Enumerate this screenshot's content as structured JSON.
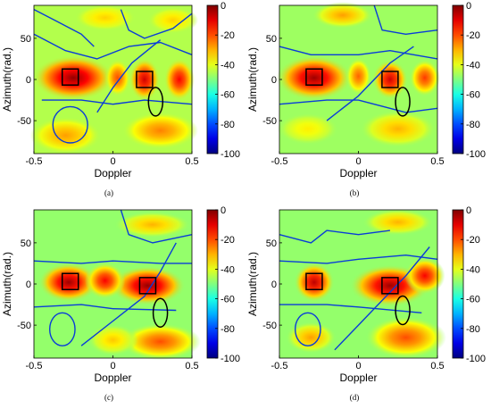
{
  "chart_data": [
    {
      "panel_label": "(a)",
      "type": "heatmap",
      "xlabel": "Doppler",
      "ylabel": "Azimuth(rad.)",
      "xlim": [
        -0.5,
        0.5
      ],
      "ylim": [
        -90,
        90
      ],
      "x_ticks": [
        "-0.5",
        "0",
        "0.5"
      ],
      "y_ticks": [
        "50",
        "0",
        "-50"
      ],
      "colorbar": {
        "min": -100,
        "max": 0,
        "ticks": [
          "0",
          "-20",
          "-40",
          "-60",
          "-80",
          "-100"
        ]
      },
      "background_level": -45,
      "lobes": [
        {
          "x": -0.25,
          "y": 2,
          "level": -2,
          "sx": 0.16,
          "sy": 17
        },
        {
          "x": 0.2,
          "y": 0,
          "level": -8,
          "sx": 0.06,
          "sy": 16
        },
        {
          "x": 0.42,
          "y": 0,
          "level": -12,
          "sx": 0.06,
          "sy": 16
        },
        {
          "x": 0.03,
          "y": 2,
          "level": -20,
          "sx": 0.05,
          "sy": 14
        },
        {
          "x": -0.3,
          "y": -68,
          "level": -28,
          "sx": 0.14,
          "sy": 14
        },
        {
          "x": 0.3,
          "y": -62,
          "level": -25,
          "sx": 0.15,
          "sy": 14
        },
        {
          "x": -0.05,
          "y": 75,
          "level": -33,
          "sx": 0.12,
          "sy": 10
        },
        {
          "x": 0.38,
          "y": 72,
          "level": -33,
          "sx": 0.1,
          "sy": 10
        }
      ],
      "nulls": [
        [
          [
            -0.5,
            55
          ],
          [
            -0.3,
            35
          ],
          [
            -0.1,
            25
          ],
          [
            0.1,
            40
          ],
          [
            0.3,
            45
          ],
          [
            0.5,
            30
          ]
        ],
        [
          [
            -0.45,
            -25
          ],
          [
            -0.2,
            -25
          ],
          [
            0.0,
            -30
          ],
          [
            0.2,
            -25
          ],
          [
            0.5,
            -30
          ]
        ],
        [
          [
            -0.1,
            -40
          ],
          [
            0.0,
            -10
          ],
          [
            0.12,
            20
          ],
          [
            0.3,
            48
          ]
        ],
        [
          [
            -0.5,
            85
          ],
          [
            -0.35,
            70
          ],
          [
            -0.2,
            55
          ],
          [
            -0.12,
            40
          ]
        ],
        [
          [
            0.05,
            85
          ],
          [
            0.1,
            60
          ],
          [
            0.2,
            50
          ],
          [
            0.38,
            62
          ],
          [
            0.5,
            80
          ]
        ]
      ],
      "null_loops": [
        {
          "x": -0.27,
          "y": -55,
          "rx": 0.11,
          "ry": 22
        }
      ],
      "targets": [
        {
          "x": -0.27,
          "y": 3
        },
        {
          "x": 0.2,
          "y": 0
        }
      ],
      "ellipse": {
        "x": 0.27,
        "y": -27
      }
    },
    {
      "panel_label": "(b)",
      "type": "heatmap",
      "xlabel": "Doppler",
      "ylabel": "Azimuth(rad.)",
      "xlim": [
        -0.5,
        0.5
      ],
      "ylim": [
        -90,
        90
      ],
      "x_ticks": [
        "-0.5",
        "0",
        "0.5"
      ],
      "y_ticks": [
        "50",
        "0",
        "-50"
      ],
      "colorbar": {
        "min": -100,
        "max": 0,
        "ticks": [
          "0",
          "-20",
          "-40",
          "-60",
          "-80",
          "-100"
        ]
      },
      "background_level": -47,
      "lobes": [
        {
          "x": -0.28,
          "y": 2,
          "level": -3,
          "sx": 0.15,
          "sy": 17
        },
        {
          "x": 0.2,
          "y": 0,
          "level": -8,
          "sx": 0.07,
          "sy": 15
        },
        {
          "x": 0.42,
          "y": 2,
          "level": -18,
          "sx": 0.06,
          "sy": 14
        },
        {
          "x": 0.0,
          "y": 4,
          "level": -22,
          "sx": 0.05,
          "sy": 14
        },
        {
          "x": -0.1,
          "y": 78,
          "level": -28,
          "sx": 0.12,
          "sy": 10
        },
        {
          "x": 0.25,
          "y": -60,
          "level": -30,
          "sx": 0.15,
          "sy": 14
        },
        {
          "x": -0.32,
          "y": -60,
          "level": -36,
          "sx": 0.12,
          "sy": 12
        }
      ],
      "nulls": [
        [
          [
            -0.5,
            40
          ],
          [
            -0.3,
            30
          ],
          [
            0.0,
            30
          ],
          [
            0.2,
            35
          ],
          [
            0.5,
            25
          ]
        ],
        [
          [
            -0.5,
            -30
          ],
          [
            -0.2,
            -25
          ],
          [
            0.0,
            -25
          ],
          [
            0.3,
            -40
          ],
          [
            0.5,
            -35
          ]
        ],
        [
          [
            -0.2,
            -50
          ],
          [
            0.0,
            -20
          ],
          [
            0.2,
            20
          ],
          [
            0.35,
            40
          ]
        ],
        [
          [
            0.1,
            90
          ],
          [
            0.15,
            60
          ],
          [
            0.3,
            55
          ],
          [
            0.5,
            60
          ]
        ]
      ],
      "null_loops": [],
      "targets": [
        {
          "x": -0.28,
          "y": 3
        },
        {
          "x": 0.2,
          "y": 0
        }
      ],
      "ellipse": {
        "x": 0.28,
        "y": -27
      }
    },
    {
      "panel_label": "(c)",
      "type": "heatmap",
      "xlabel": "Doppler",
      "ylabel": "Azimuth(rad.)",
      "xlim": [
        -0.5,
        0.5
      ],
      "ylim": [
        -90,
        90
      ],
      "x_ticks": [
        "-0.5",
        "0",
        "0.5"
      ],
      "y_ticks": [
        "50",
        "0",
        "-50"
      ],
      "colorbar": {
        "min": -100,
        "max": 0,
        "ticks": [
          "0",
          "-20",
          "-40",
          "-60",
          "-80",
          "-100"
        ]
      },
      "background_level": -48,
      "lobes": [
        {
          "x": -0.28,
          "y": 2,
          "level": -3,
          "sx": 0.12,
          "sy": 15
        },
        {
          "x": 0.22,
          "y": -2,
          "level": -2,
          "sx": 0.15,
          "sy": 15
        },
        {
          "x": -0.05,
          "y": 4,
          "level": -12,
          "sx": 0.08,
          "sy": 14
        },
        {
          "x": 0.3,
          "y": -70,
          "level": -20,
          "sx": 0.16,
          "sy": 14
        },
        {
          "x": 0.0,
          "y": -68,
          "level": -32,
          "sx": 0.1,
          "sy": 12
        },
        {
          "x": 0.25,
          "y": 72,
          "level": -30,
          "sx": 0.15,
          "sy": 10
        }
      ],
      "nulls": [
        [
          [
            -0.5,
            28
          ],
          [
            -0.2,
            25
          ],
          [
            0.0,
            28
          ],
          [
            0.3,
            25
          ],
          [
            0.5,
            25
          ]
        ],
        [
          [
            -0.5,
            -28
          ],
          [
            -0.2,
            -25
          ],
          [
            0.0,
            -30
          ],
          [
            0.4,
            -32
          ]
        ],
        [
          [
            -0.2,
            -75
          ],
          [
            0.0,
            -45
          ],
          [
            0.2,
            -15
          ],
          [
            0.3,
            15
          ],
          [
            0.4,
            50
          ]
        ],
        [
          [
            0.05,
            90
          ],
          [
            0.1,
            60
          ],
          [
            0.25,
            50
          ],
          [
            0.5,
            60
          ]
        ]
      ],
      "null_loops": [
        {
          "x": -0.32,
          "y": -55,
          "rx": 0.08,
          "ry": 20
        }
      ],
      "targets": [
        {
          "x": -0.27,
          "y": 3
        },
        {
          "x": 0.22,
          "y": -2
        }
      ],
      "ellipse": {
        "x": 0.3,
        "y": -35
      }
    },
    {
      "panel_label": "(d)",
      "type": "heatmap",
      "xlabel": "Doppler",
      "ylabel": "Azimuth(rad.)",
      "xlim": [
        -0.5,
        0.5
      ],
      "ylim": [
        -90,
        90
      ],
      "x_ticks": [
        "-0.5",
        "0",
        "0.5"
      ],
      "y_ticks": [
        "50",
        "0",
        "-50"
      ],
      "colorbar": {
        "min": -100,
        "max": 0,
        "ticks": [
          "0",
          "-20",
          "-40",
          "-60",
          "-80",
          "-100"
        ]
      },
      "background_level": -48,
      "lobes": [
        {
          "x": -0.28,
          "y": 2,
          "level": -6,
          "sx": 0.08,
          "sy": 15
        },
        {
          "x": 0.2,
          "y": -2,
          "level": -3,
          "sx": 0.16,
          "sy": 16
        },
        {
          "x": 0.42,
          "y": 10,
          "level": -12,
          "sx": 0.08,
          "sy": 14
        },
        {
          "x": 0.3,
          "y": -65,
          "level": -20,
          "sx": 0.16,
          "sy": 16
        },
        {
          "x": -0.3,
          "y": -65,
          "level": -28,
          "sx": 0.1,
          "sy": 12
        },
        {
          "x": 0.25,
          "y": 75,
          "level": -30,
          "sx": 0.14,
          "sy": 10
        }
      ],
      "nulls": [
        [
          [
            -0.5,
            28
          ],
          [
            -0.2,
            25
          ],
          [
            0.0,
            30
          ],
          [
            0.3,
            35
          ],
          [
            0.5,
            30
          ]
        ],
        [
          [
            -0.5,
            -25
          ],
          [
            -0.2,
            -25
          ],
          [
            0.0,
            -28
          ],
          [
            0.4,
            -35
          ]
        ],
        [
          [
            -0.15,
            -80
          ],
          [
            0.0,
            -50
          ],
          [
            0.15,
            -20
          ],
          [
            0.3,
            10
          ],
          [
            0.45,
            45
          ]
        ],
        [
          [
            -0.5,
            60
          ],
          [
            -0.3,
            50
          ],
          [
            -0.2,
            65
          ],
          [
            0.0,
            60
          ],
          [
            0.2,
            65
          ]
        ]
      ],
      "null_loops": [
        {
          "x": -0.32,
          "y": -55,
          "rx": 0.08,
          "ry": 20
        }
      ],
      "targets": [
        {
          "x": -0.28,
          "y": 3
        },
        {
          "x": 0.2,
          "y": -2
        }
      ],
      "ellipse": {
        "x": 0.28,
        "y": -32
      }
    }
  ]
}
